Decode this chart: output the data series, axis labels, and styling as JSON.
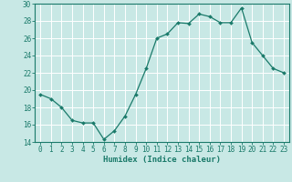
{
  "x": [
    0,
    1,
    2,
    3,
    4,
    5,
    6,
    7,
    8,
    9,
    10,
    11,
    12,
    13,
    14,
    15,
    16,
    17,
    18,
    19,
    20,
    21,
    22,
    23
  ],
  "y": [
    19.5,
    19.0,
    18.0,
    16.5,
    16.2,
    16.2,
    14.3,
    15.3,
    17.0,
    19.5,
    22.5,
    26.0,
    26.5,
    27.8,
    27.7,
    28.8,
    28.5,
    27.8,
    27.8,
    29.5,
    25.5,
    24.0,
    22.5,
    22.0
  ],
  "line_color": "#1a7a6a",
  "marker": "D",
  "marker_size": 2.0,
  "bg_color": "#c8e8e5",
  "grid_color": "#ffffff",
  "xlabel": "Humidex (Indice chaleur)",
  "ylim": [
    14,
    30
  ],
  "xlim": [
    -0.5,
    23.5
  ],
  "yticks": [
    14,
    16,
    18,
    20,
    22,
    24,
    26,
    28,
    30
  ],
  "xticks": [
    0,
    1,
    2,
    3,
    4,
    5,
    6,
    7,
    8,
    9,
    10,
    11,
    12,
    13,
    14,
    15,
    16,
    17,
    18,
    19,
    20,
    21,
    22,
    23
  ],
  "tick_fontsize": 5.5,
  "label_fontsize": 6.5,
  "axis_color": "#1a7a6a"
}
